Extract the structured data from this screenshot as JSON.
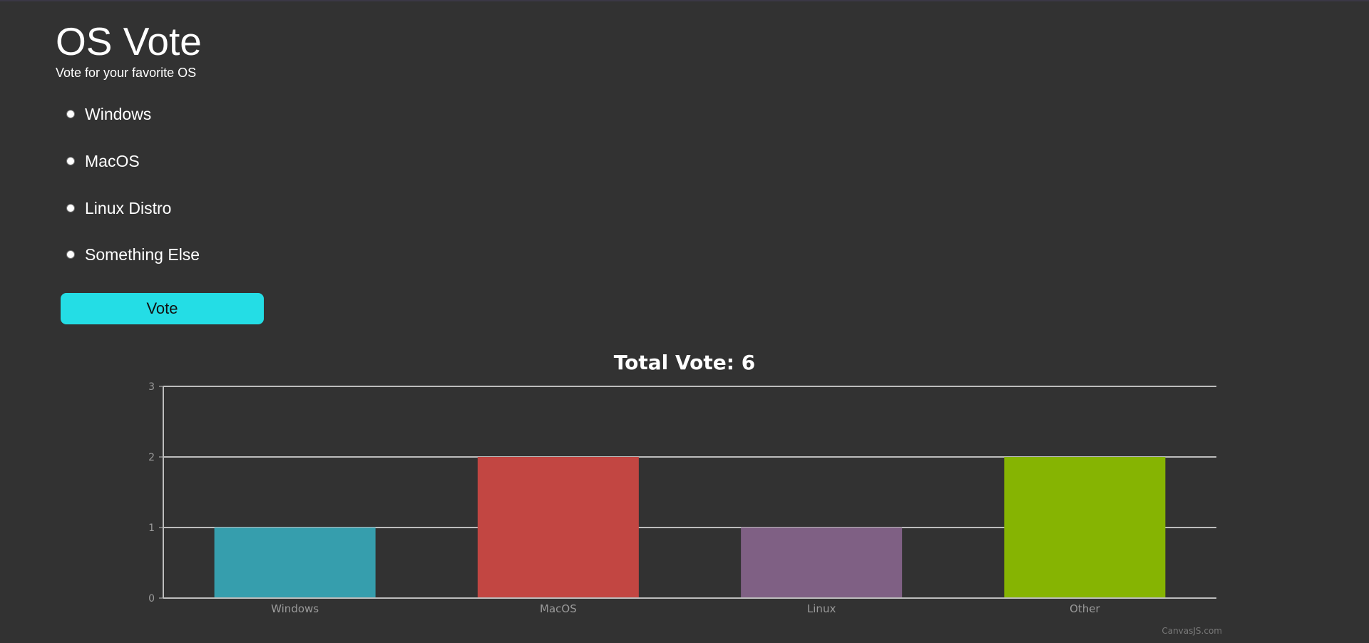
{
  "header": {
    "title": "OS Vote",
    "subtitle": "Vote for your favorite OS"
  },
  "form": {
    "options": [
      {
        "label": "Windows",
        "checked": false
      },
      {
        "label": "MacOS",
        "checked": false
      },
      {
        "label": "Linux Distro",
        "checked": false
      },
      {
        "label": "Something Else",
        "checked": false
      }
    ],
    "vote_label": "Vote"
  },
  "chart_data": {
    "type": "bar",
    "title": "Total Vote: 6",
    "categories": [
      "Windows",
      "MacOS",
      "Linux",
      "Other"
    ],
    "values": [
      1,
      2,
      1,
      2
    ],
    "colors": [
      "#369EAD",
      "#C24642",
      "#7F6084",
      "#86B402"
    ],
    "ylim": [
      0,
      3
    ],
    "yticks": [
      0,
      1,
      2,
      3
    ],
    "grid": true,
    "xlabel": "",
    "ylabel": ""
  },
  "credit": "CanvasJS.com",
  "theme": {
    "background": "#323232",
    "accent": "#24dde5"
  }
}
